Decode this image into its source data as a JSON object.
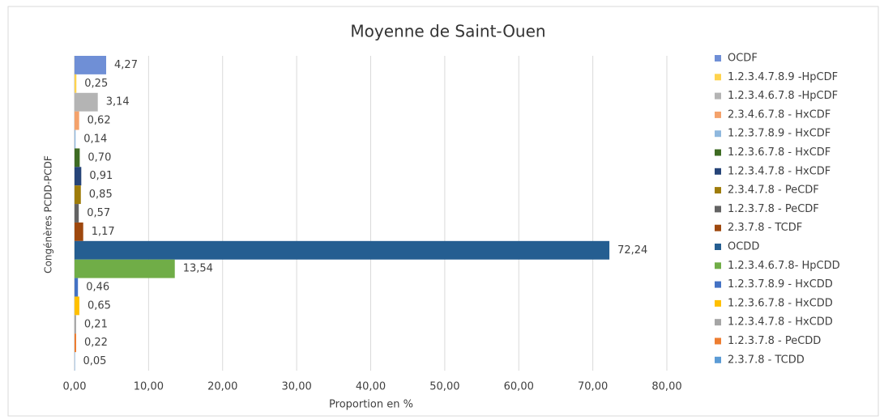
{
  "chart_data": {
    "type": "bar",
    "orientation": "horizontal",
    "title": "Moyenne de Saint-Ouen",
    "xlabel": "Proportion en %",
    "ylabel": "Congénères PCDD-PCDF",
    "categories": [
      null
    ],
    "series": [
      {
        "name": "OCDF",
        "color": "#6f8fd6",
        "values": [
          4.27
        ],
        "value_labels": [
          "4,27"
        ]
      },
      {
        "name": "1.2.3.4.7.8.9 -HpCDF",
        "color": "#ffd34d",
        "values": [
          0.25
        ],
        "value_labels": [
          "0,25"
        ]
      },
      {
        "name": "1.2.3.4.6.7.8 -HpCDF",
        "color": "#b4b4b4",
        "values": [
          3.14
        ],
        "value_labels": [
          "3,14"
        ]
      },
      {
        "name": "2.3.4.6.7.8 - HxCDF",
        "color": "#f4a26b",
        "values": [
          0.62
        ],
        "value_labels": [
          "0,62"
        ]
      },
      {
        "name": "1.2.3.7.8.9 - HxCDF",
        "color": "#8fb8de",
        "values": [
          0.14
        ],
        "value_labels": [
          "0,14"
        ]
      },
      {
        "name": "1.2.3.6.7.8 - HxCDF",
        "color": "#3e6b23",
        "values": [
          0.7
        ],
        "value_labels": [
          "0,70"
        ]
      },
      {
        "name": "1.2.3.4.7.8 - HxCDF",
        "color": "#264478",
        "values": [
          0.91
        ],
        "value_labels": [
          "0,91"
        ]
      },
      {
        "name": "2.3.4.7.8 - PeCDF",
        "color": "#9e7c0a",
        "values": [
          0.85
        ],
        "value_labels": [
          "0,85"
        ]
      },
      {
        "name": "1.2.3.7.8 - PeCDF",
        "color": "#636363",
        "values": [
          0.57
        ],
        "value_labels": [
          "0,57"
        ]
      },
      {
        "name": "2.3.7.8 - TCDF",
        "color": "#9e480e",
        "values": [
          1.17
        ],
        "value_labels": [
          "1,17"
        ]
      },
      {
        "name": "OCDD",
        "color": "#255e91",
        "values": [
          72.24
        ],
        "value_labels": [
          "72,24"
        ]
      },
      {
        "name": "1.2.3.4.6.7.8- HpCDD",
        "color": "#70ad47",
        "values": [
          13.54
        ],
        "value_labels": [
          "13,54"
        ]
      },
      {
        "name": "1.2.3.7.8.9 - HxCDD",
        "color": "#4472c4",
        "values": [
          0.46
        ],
        "value_labels": [
          "0,46"
        ]
      },
      {
        "name": "1.2.3.6.7.8 - HxCDD",
        "color": "#ffc000",
        "values": [
          0.65
        ],
        "value_labels": [
          "0,65"
        ]
      },
      {
        "name": "1.2.3.4.7.8 - HxCDD",
        "color": "#a5a5a5",
        "values": [
          0.21
        ],
        "value_labels": [
          "0,21"
        ]
      },
      {
        "name": "1.2.3.7.8 - PeCDD",
        "color": "#ed7d31",
        "values": [
          0.22
        ],
        "value_labels": [
          "0,22"
        ]
      },
      {
        "name": "2.3.7.8 - TCDD",
        "color": "#5b9bd5",
        "values": [
          0.05
        ],
        "value_labels": [
          "0,05"
        ]
      }
    ],
    "xlim": [
      0,
      80
    ],
    "xticks": [
      {
        "value": 0,
        "label": "0,00"
      },
      {
        "value": 10,
        "label": "10,00"
      },
      {
        "value": 20,
        "label": "20,00"
      },
      {
        "value": 30,
        "label": "30,00"
      },
      {
        "value": 40,
        "label": "40,00"
      },
      {
        "value": 50,
        "label": "50,00"
      },
      {
        "value": 60,
        "label": "60,00"
      },
      {
        "value": 70,
        "label": "70,00"
      },
      {
        "value": 80,
        "label": "80,00"
      }
    ],
    "grid": true,
    "legend": "right"
  }
}
